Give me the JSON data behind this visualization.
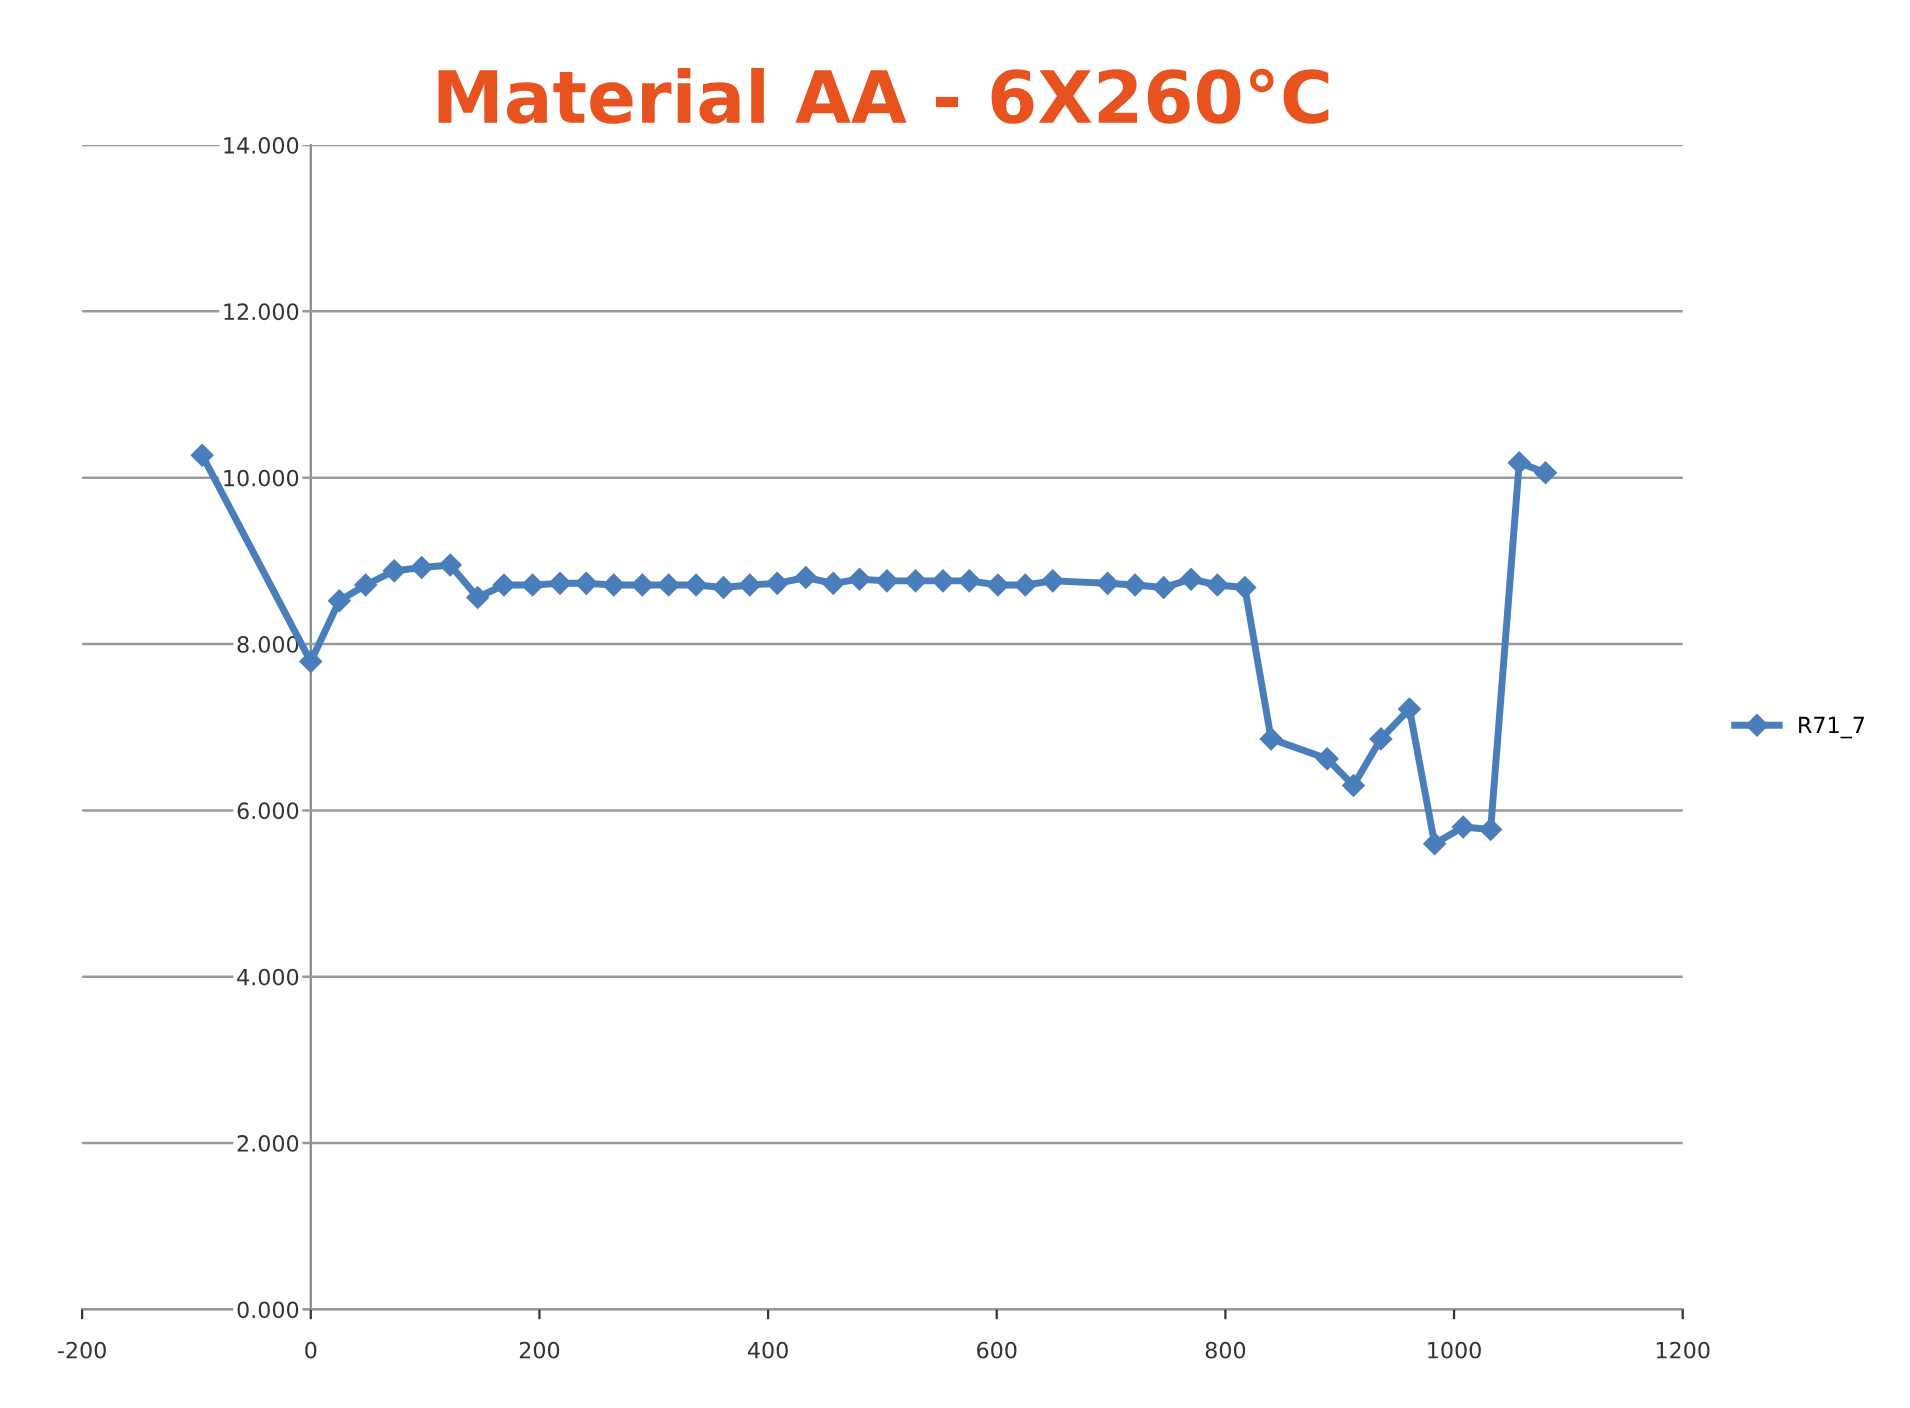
{
  "chart_data": {
    "type": "line",
    "title": "Material AA - 6X260°C",
    "series": [
      {
        "name": "R71_7",
        "color": "#4a7ebb",
        "x": [
          -95,
          0,
          25,
          48,
          73,
          97,
          122,
          146,
          169,
          194,
          218,
          241,
          265,
          290,
          313,
          337,
          361,
          384,
          408,
          433,
          457,
          480,
          504,
          529,
          553,
          576,
          601,
          625,
          649,
          697,
          721,
          746,
          770,
          793,
          817,
          840,
          889,
          912,
          936,
          961,
          983,
          1008,
          1032,
          1057,
          1080
        ],
        "values": [
          10.27,
          7.79,
          8.52,
          8.71,
          8.88,
          8.92,
          8.95,
          8.56,
          8.71,
          8.71,
          8.73,
          8.73,
          8.71,
          8.71,
          8.71,
          8.71,
          8.68,
          8.71,
          8.73,
          8.8,
          8.73,
          8.78,
          8.76,
          8.76,
          8.76,
          8.76,
          8.71,
          8.71,
          8.76,
          8.73,
          8.71,
          8.68,
          8.78,
          8.71,
          8.68,
          6.86,
          6.62,
          6.3,
          6.86,
          7.22,
          5.6,
          5.8,
          5.77,
          10.18,
          10.06
        ]
      }
    ],
    "xlim": [
      -200,
      1200
    ],
    "xticks": [
      -200,
      0,
      200,
      400,
      600,
      800,
      1000,
      1200
    ],
    "ylim": [
      0,
      14
    ],
    "yticks": [
      {
        "value": 0,
        "label": "0.000"
      },
      {
        "value": 2,
        "label": "2.000"
      },
      {
        "value": 4,
        "label": "4.000"
      },
      {
        "value": 6,
        "label": "6.000"
      },
      {
        "value": 8,
        "label": "8.000"
      },
      {
        "value": 10,
        "label": "10.000"
      },
      {
        "value": 12,
        "label": "12.000"
      },
      {
        "value": 14,
        "label": "14.000"
      }
    ],
    "grid": "y",
    "legend": "right",
    "marker": "diamond",
    "line_style": "solid"
  }
}
